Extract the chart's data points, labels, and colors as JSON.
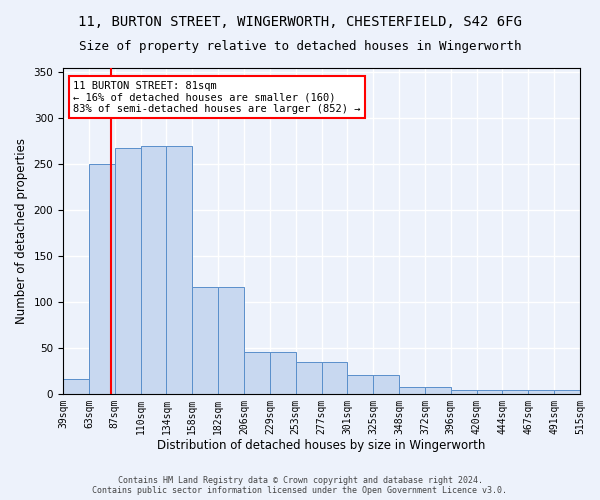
{
  "title_line1": "11, BURTON STREET, WINGERWORTH, CHESTERFIELD, S42 6FG",
  "title_line2": "Size of property relative to detached houses in Wingerworth",
  "xlabel": "Distribution of detached houses by size in Wingerworth",
  "ylabel": "Number of detached properties",
  "bar_labels": [
    "39sqm",
    "63sqm",
    "87sqm",
    "110sqm",
    "134sqm",
    "158sqm",
    "182sqm",
    "206sqm",
    "229sqm",
    "253sqm",
    "277sqm",
    "301sqm",
    "325sqm",
    "348sqm",
    "372sqm",
    "396sqm",
    "420sqm",
    "444sqm",
    "467sqm",
    "491sqm",
    "515sqm"
  ],
  "bar_heights": [
    16,
    250,
    267,
    270,
    270,
    116,
    116,
    45,
    45,
    35,
    35,
    21,
    21,
    7,
    7,
    4,
    4,
    4,
    4,
    4,
    3
  ],
  "bar_color": "#c8d8f0",
  "bar_edge_color": "#5a8fcb",
  "annotation_text": "11 BURTON STREET: 81sqm\n← 16% of detached houses are smaller (160)\n83% of semi-detached houses are larger (852) →",
  "annotation_box_color": "white",
  "annotation_box_edge_color": "red",
  "red_line_color": "red",
  "red_line_x": 1.85,
  "ylim": [
    0,
    355
  ],
  "yticks": [
    0,
    50,
    100,
    150,
    200,
    250,
    300,
    350
  ],
  "footer_line1": "Contains HM Land Registry data © Crown copyright and database right 2024.",
  "footer_line2": "Contains public sector information licensed under the Open Government Licence v3.0.",
  "bg_color": "#edf2fb",
  "plot_bg_color": "#edf2fb",
  "grid_color": "white",
  "title_fontsize": 10,
  "subtitle_fontsize": 9,
  "tick_fontsize": 7,
  "ylabel_fontsize": 8.5,
  "xlabel_fontsize": 8.5,
  "footer_fontsize": 6,
  "annot_fontsize": 7.5
}
